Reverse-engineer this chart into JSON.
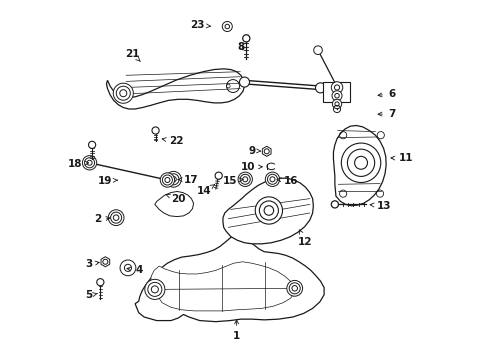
{
  "background_color": "#ffffff",
  "line_color": "#1a1a1a",
  "fig_width": 4.89,
  "fig_height": 3.6,
  "dpi": 100,
  "label_positions": {
    "1": [
      0.478,
      0.065,
      0.478,
      0.12,
      "center"
    ],
    "2": [
      0.1,
      0.39,
      0.135,
      0.395,
      "right"
    ],
    "3": [
      0.075,
      0.265,
      0.105,
      0.272,
      "right"
    ],
    "4": [
      0.195,
      0.248,
      0.162,
      0.255,
      "left"
    ],
    "5": [
      0.075,
      0.178,
      0.098,
      0.185,
      "right"
    ],
    "6": [
      0.9,
      0.74,
      0.862,
      0.735,
      "left"
    ],
    "7": [
      0.9,
      0.685,
      0.862,
      0.683,
      "left"
    ],
    "8": [
      0.49,
      0.87,
      0.503,
      0.855,
      "center"
    ],
    "9": [
      0.53,
      0.582,
      0.555,
      0.58,
      "right"
    ],
    "10": [
      0.53,
      0.536,
      0.56,
      0.537,
      "right"
    ],
    "11": [
      0.93,
      0.56,
      0.898,
      0.562,
      "left"
    ],
    "12": [
      0.67,
      0.328,
      0.648,
      0.37,
      "center"
    ],
    "13": [
      0.87,
      0.428,
      0.84,
      0.432,
      "left"
    ],
    "14": [
      0.408,
      0.468,
      0.418,
      0.488,
      "right"
    ],
    "15": [
      0.48,
      0.498,
      0.498,
      0.502,
      "right"
    ],
    "16": [
      0.61,
      0.498,
      0.588,
      0.502,
      "left"
    ],
    "17": [
      0.33,
      0.5,
      0.305,
      0.502,
      "left"
    ],
    "18": [
      0.048,
      0.545,
      0.068,
      0.548,
      "right"
    ],
    "19": [
      0.13,
      0.498,
      0.155,
      0.5,
      "right"
    ],
    "20": [
      0.295,
      0.448,
      0.272,
      0.462,
      "left"
    ],
    "21": [
      0.188,
      0.852,
      0.21,
      0.83,
      "center"
    ],
    "22": [
      0.29,
      0.608,
      0.268,
      0.615,
      "left"
    ],
    "23": [
      0.388,
      0.932,
      0.415,
      0.928,
      "right"
    ]
  }
}
